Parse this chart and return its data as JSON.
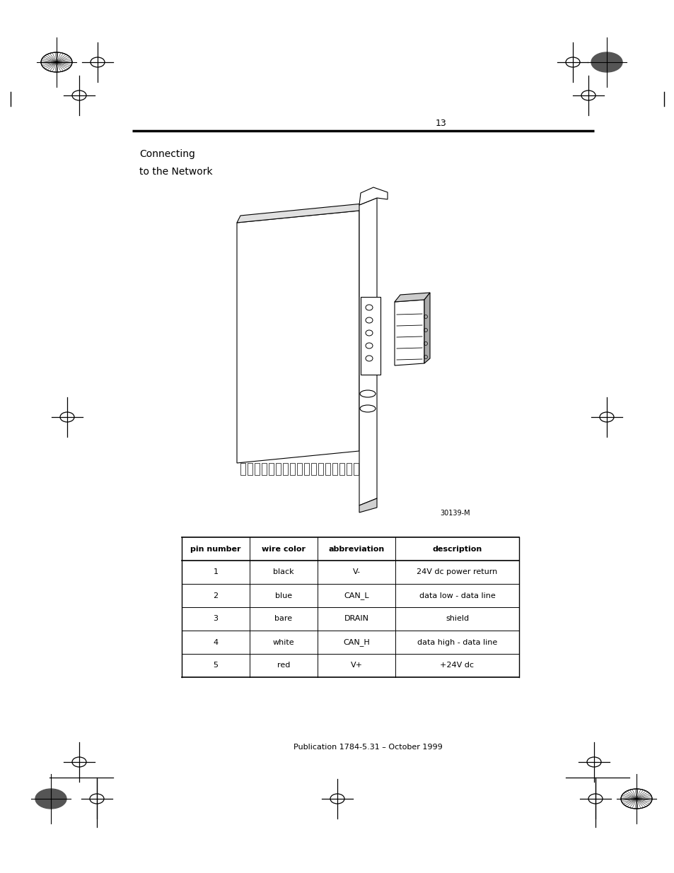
{
  "page_number": "13",
  "title_line1": "Connecting",
  "title_line2": "to the Network",
  "image_caption": "30139-M",
  "footer_text": "Publication 1784-5.31 – October 1999",
  "table_headers": [
    "pin number",
    "wire color",
    "abbreviation",
    "description"
  ],
  "table_rows": [
    [
      "1",
      "black",
      "V-",
      "24V dc power return"
    ],
    [
      "2",
      "blue",
      "CAN_L",
      "data low - data line"
    ],
    [
      "3",
      "bare",
      "DRAIN",
      "shield"
    ],
    [
      "4",
      "white",
      "CAN_H",
      "data high - data line"
    ],
    [
      "5",
      "red",
      "V+",
      "+24V dc"
    ]
  ],
  "background_color": "#ffffff",
  "text_color": "#000000"
}
